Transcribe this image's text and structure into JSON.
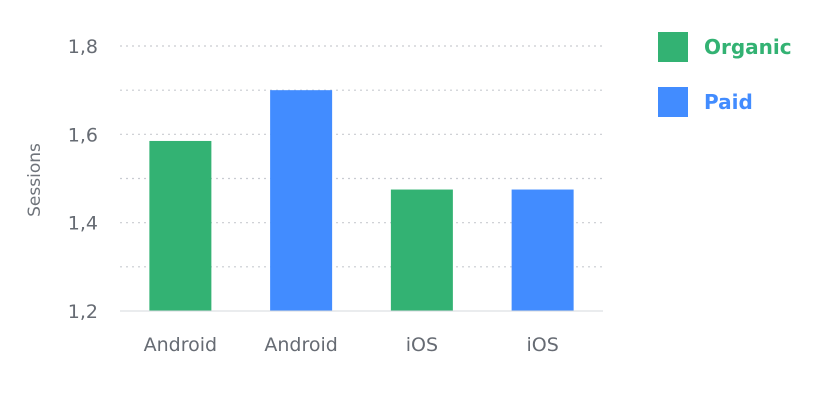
{
  "chart_data": {
    "type": "bar",
    "title": "",
    "xlabel": "",
    "ylabel": "Sessions",
    "ylim": [
      1.2,
      1.8
    ],
    "yticks": [
      "1,2",
      "1,4",
      "1,6",
      "1,8"
    ],
    "grid": true,
    "legend_position": "top-right",
    "categories": [
      "Android",
      "Android",
      "iOS",
      "iOS"
    ],
    "series": [
      {
        "name": "Organic",
        "color": "#33b273",
        "values": [
          1.585,
          null,
          1.475,
          null
        ]
      },
      {
        "name": "Paid",
        "color": "#428cff",
        "values": [
          null,
          1.7,
          null,
          1.475
        ]
      }
    ]
  }
}
